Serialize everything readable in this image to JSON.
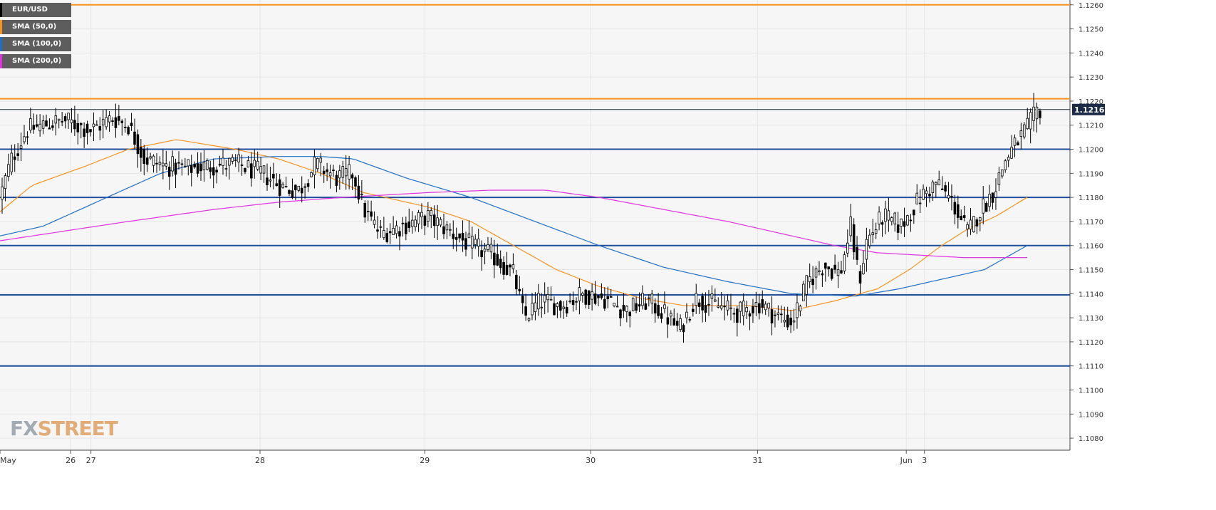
{
  "legend": [
    {
      "label": "EUR/USD",
      "color": "#000000"
    },
    {
      "label": "SMA (50,0)",
      "color": "#f7931e"
    },
    {
      "label": "SMA (100,0)",
      "color": "#1f6fc5"
    },
    {
      "label": "SMA (200,0)",
      "color": "#e033e0"
    }
  ],
  "logo": {
    "prefix": "FX",
    "suffix": "STREET"
  },
  "colors": {
    "background": "#f6f6f6",
    "grid": "#e6e6e6",
    "candle_up": "#ffffff",
    "candle_down": "#000000",
    "resistance_line": "#f7931e",
    "support_line": "#1f4e9c",
    "sma50": "#f7931e",
    "sma100": "#1f6fc5",
    "sma200": "#e033e0",
    "price_tag_bg": "#1b2a47"
  },
  "chart_data": {
    "type": "candlestick",
    "symbol": "EUR/USD",
    "ylim": [
      1.1075,
      1.1262
    ],
    "y_ticks": [
      "1.1260",
      "1.1250",
      "1.1240",
      "1.1230",
      "1.1220",
      "1.1210",
      "1.1200",
      "1.1190",
      "1.1180",
      "1.1170",
      "1.1160",
      "1.1150",
      "1.1140",
      "1.1130",
      "1.1120",
      "1.1110",
      "1.1100",
      "1.1090",
      "1.1080"
    ],
    "x_tick_labels": [
      {
        "label": "May",
        "pos": 0.0
      },
      {
        "label": "26",
        "pos": 0.066
      },
      {
        "label": "27",
        "pos": 0.085
      },
      {
        "label": "28",
        "pos": 0.243
      },
      {
        "label": "29",
        "pos": 0.397
      },
      {
        "label": "30",
        "pos": 0.552
      },
      {
        "label": "31",
        "pos": 0.708
      },
      {
        "label": "Jun",
        "pos": 0.847
      },
      {
        "label": "3",
        "pos": 0.864
      }
    ],
    "last_price": "1.12165",
    "horizontal_lines": [
      {
        "value": 1.126,
        "color": "#f7931e"
      },
      {
        "value": 1.1221,
        "color": "#f7931e"
      },
      {
        "value": 1.12165,
        "color": "#1b2a47",
        "thin": true
      },
      {
        "value": 1.12,
        "color": "#1f4e9c"
      },
      {
        "value": 1.118,
        "color": "#1f4e9c"
      },
      {
        "value": 1.116,
        "color": "#1f4e9c"
      },
      {
        "value": 1.11395,
        "color": "#1f4e9c"
      },
      {
        "value": 1.111,
        "color": "#1f4e9c"
      }
    ],
    "price_anchors": [
      [
        0.0,
        1.118
      ],
      [
        0.01,
        1.1195
      ],
      [
        0.025,
        1.1208
      ],
      [
        0.04,
        1.121
      ],
      [
        0.06,
        1.1212
      ],
      [
        0.085,
        1.1208
      ],
      [
        0.105,
        1.1213
      ],
      [
        0.12,
        1.121
      ],
      [
        0.135,
        1.1196
      ],
      [
        0.155,
        1.1193
      ],
      [
        0.175,
        1.1192
      ],
      [
        0.195,
        1.1193
      ],
      [
        0.22,
        1.1194
      ],
      [
        0.245,
        1.119
      ],
      [
        0.265,
        1.1184
      ],
      [
        0.28,
        1.1183
      ],
      [
        0.295,
        1.1194
      ],
      [
        0.315,
        1.1188
      ],
      [
        0.33,
        1.119
      ],
      [
        0.34,
        1.1175
      ],
      [
        0.355,
        1.1165
      ],
      [
        0.375,
        1.1168
      ],
      [
        0.4,
        1.1172
      ],
      [
        0.42,
        1.1166
      ],
      [
        0.44,
        1.116
      ],
      [
        0.46,
        1.1156
      ],
      [
        0.48,
        1.1148
      ],
      [
        0.49,
        1.113
      ],
      [
        0.505,
        1.1137
      ],
      [
        0.525,
        1.1135
      ],
      [
        0.545,
        1.114
      ],
      [
        0.565,
        1.1138
      ],
      [
        0.585,
        1.1133
      ],
      [
        0.605,
        1.1137
      ],
      [
        0.62,
        1.1132
      ],
      [
        0.635,
        1.1125
      ],
      [
        0.65,
        1.1138
      ],
      [
        0.67,
        1.1135
      ],
      [
        0.69,
        1.1132
      ],
      [
        0.71,
        1.1136
      ],
      [
        0.725,
        1.1131
      ],
      [
        0.74,
        1.1128
      ],
      [
        0.755,
        1.1145
      ],
      [
        0.77,
        1.1152
      ],
      [
        0.785,
        1.1148
      ],
      [
        0.795,
        1.1168
      ],
      [
        0.803,
        1.1145
      ],
      [
        0.81,
        1.1162
      ],
      [
        0.825,
        1.1172
      ],
      [
        0.842,
        1.1168
      ],
      [
        0.86,
        1.118
      ],
      [
        0.875,
        1.1186
      ],
      [
        0.89,
        1.1178
      ],
      [
        0.905,
        1.1165
      ],
      [
        0.915,
        1.1174
      ],
      [
        0.928,
        1.1182
      ],
      [
        0.94,
        1.1196
      ],
      [
        0.952,
        1.1204
      ],
      [
        0.962,
        1.121
      ],
      [
        0.97,
        1.12165
      ]
    ],
    "sma_series": [
      {
        "key": "sma50",
        "points": [
          [
            0.0,
            1.1174
          ],
          [
            0.03,
            1.1185
          ],
          [
            0.08,
            1.1193
          ],
          [
            0.12,
            1.12
          ],
          [
            0.165,
            1.1204
          ],
          [
            0.22,
            1.12
          ],
          [
            0.26,
            1.1196
          ],
          [
            0.3,
            1.119
          ],
          [
            0.34,
            1.1182
          ],
          [
            0.4,
            1.1176
          ],
          [
            0.44,
            1.117
          ],
          [
            0.48,
            1.116
          ],
          [
            0.52,
            1.115
          ],
          [
            0.56,
            1.1143
          ],
          [
            0.6,
            1.1138
          ],
          [
            0.64,
            1.1135
          ],
          [
            0.7,
            1.1135
          ],
          [
            0.74,
            1.1133
          ],
          [
            0.78,
            1.1137
          ],
          [
            0.82,
            1.1142
          ],
          [
            0.85,
            1.115
          ],
          [
            0.88,
            1.116
          ],
          [
            0.905,
            1.1167
          ],
          [
            0.93,
            1.1172
          ],
          [
            0.96,
            1.118
          ]
        ]
      },
      {
        "key": "sma100",
        "points": [
          [
            0.0,
            1.1164
          ],
          [
            0.04,
            1.1168
          ],
          [
            0.1,
            1.118
          ],
          [
            0.15,
            1.119
          ],
          [
            0.2,
            1.1196
          ],
          [
            0.26,
            1.1197
          ],
          [
            0.3,
            1.1197
          ],
          [
            0.33,
            1.1196
          ],
          [
            0.38,
            1.1188
          ],
          [
            0.44,
            1.118
          ],
          [
            0.5,
            1.117
          ],
          [
            0.56,
            1.116
          ],
          [
            0.62,
            1.1151
          ],
          [
            0.68,
            1.1145
          ],
          [
            0.74,
            1.114
          ],
          [
            0.8,
            1.1139
          ],
          [
            0.84,
            1.1142
          ],
          [
            0.88,
            1.1146
          ],
          [
            0.92,
            1.115
          ],
          [
            0.96,
            1.116
          ]
        ]
      },
      {
        "key": "sma200",
        "points": [
          [
            0.0,
            1.1162
          ],
          [
            0.06,
            1.1166
          ],
          [
            0.12,
            1.117
          ],
          [
            0.2,
            1.1175
          ],
          [
            0.26,
            1.1178
          ],
          [
            0.32,
            1.118
          ],
          [
            0.4,
            1.1182
          ],
          [
            0.46,
            1.1183
          ],
          [
            0.51,
            1.1183
          ],
          [
            0.56,
            1.118
          ],
          [
            0.62,
            1.1175
          ],
          [
            0.68,
            1.117
          ],
          [
            0.74,
            1.1164
          ],
          [
            0.78,
            1.116
          ],
          [
            0.82,
            1.1157
          ],
          [
            0.86,
            1.1156
          ],
          [
            0.9,
            1.1155
          ],
          [
            0.93,
            1.1155
          ],
          [
            0.96,
            1.1155
          ]
        ]
      }
    ]
  }
}
